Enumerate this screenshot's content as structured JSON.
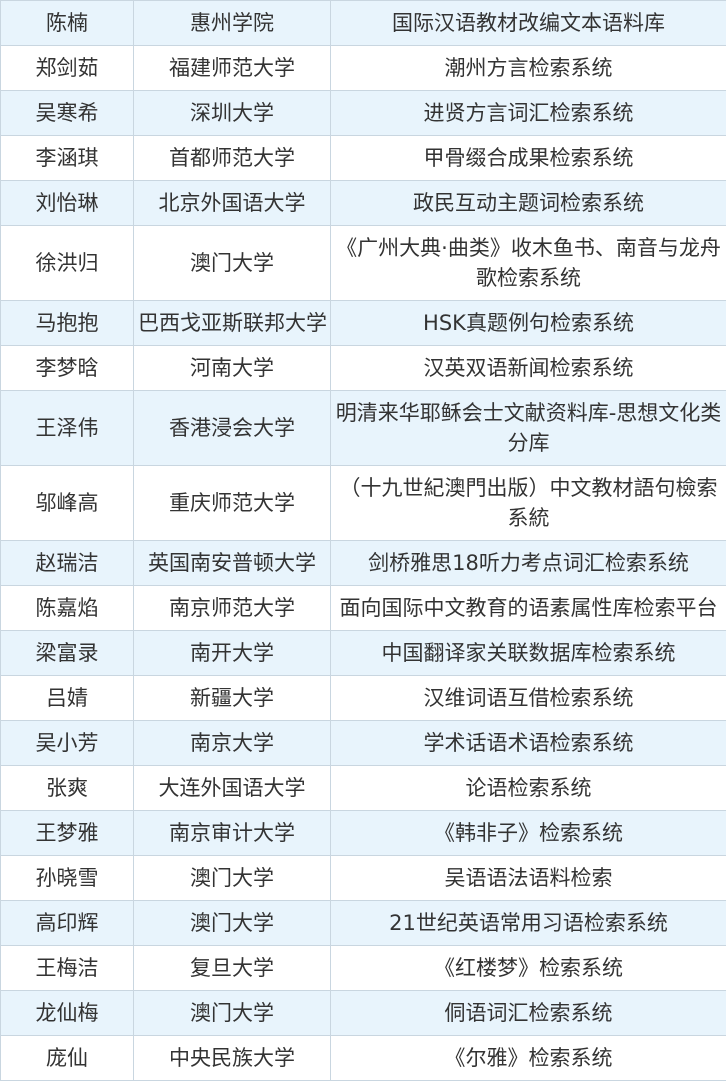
{
  "table": {
    "rows": [
      [
        "陈楠",
        "惠州学院",
        "国际汉语教材改编文本语料库"
      ],
      [
        "郑剑茹",
        "福建师范大学",
        "潮州方言检索系统"
      ],
      [
        "吴寒希",
        "深圳大学",
        "进贤方言词汇检索系统"
      ],
      [
        "李涵琪",
        "首都师范大学",
        "甲骨缀合成果检索系统"
      ],
      [
        "刘怡琳",
        "北京外国语大学",
        "政民互动主题词检索系统"
      ],
      [
        "徐洪归",
        "澳门大学",
        "《广州大典·曲类》收木鱼书、南音与龙舟歌检索系统"
      ],
      [
        "马抱抱",
        "巴西戈亚斯联邦大学",
        "HSK真题例句检索系统"
      ],
      [
        "李梦晗",
        "河南大学",
        "汉英双语新闻检索系统"
      ],
      [
        "王泽伟",
        "香港浸会大学",
        "明清来华耶稣会士文献资料库-思想文化类分库"
      ],
      [
        "邬峰高",
        "重庆师范大学",
        "（十九世紀澳門出版）中文教材語句檢索系統"
      ],
      [
        "赵瑞洁",
        "英国南安普顿大学",
        "剑桥雅思18听力考点词汇检索系统"
      ],
      [
        "陈嘉焰",
        "南京师范大学",
        "面向国际中文教育的语素属性库检索平台"
      ],
      [
        "梁富录",
        "南开大学",
        "中国翻译家关联数据库检索系统"
      ],
      [
        "吕婧",
        "新疆大学",
        "汉维词语互借检索系统"
      ],
      [
        "吴小芳",
        "南京大学",
        "学术话语术语检索系统"
      ],
      [
        "张爽",
        "大连外国语大学",
        "论语检索系统"
      ],
      [
        "王梦雅",
        "南京审计大学",
        "《韩非子》检索系统"
      ],
      [
        "孙晓雪",
        "澳门大学",
        "吴语语法语料检索"
      ],
      [
        "高印辉",
        "澳门大学",
        "21世纪英语常用习语检索系统"
      ],
      [
        "王梅洁",
        "复旦大学",
        "《红楼梦》检索系统"
      ],
      [
        "龙仙梅",
        "澳门大学",
        "侗语词汇检索系统"
      ],
      [
        "庞仙",
        "中央民族大学",
        "《尔雅》检索系统"
      ]
    ]
  }
}
